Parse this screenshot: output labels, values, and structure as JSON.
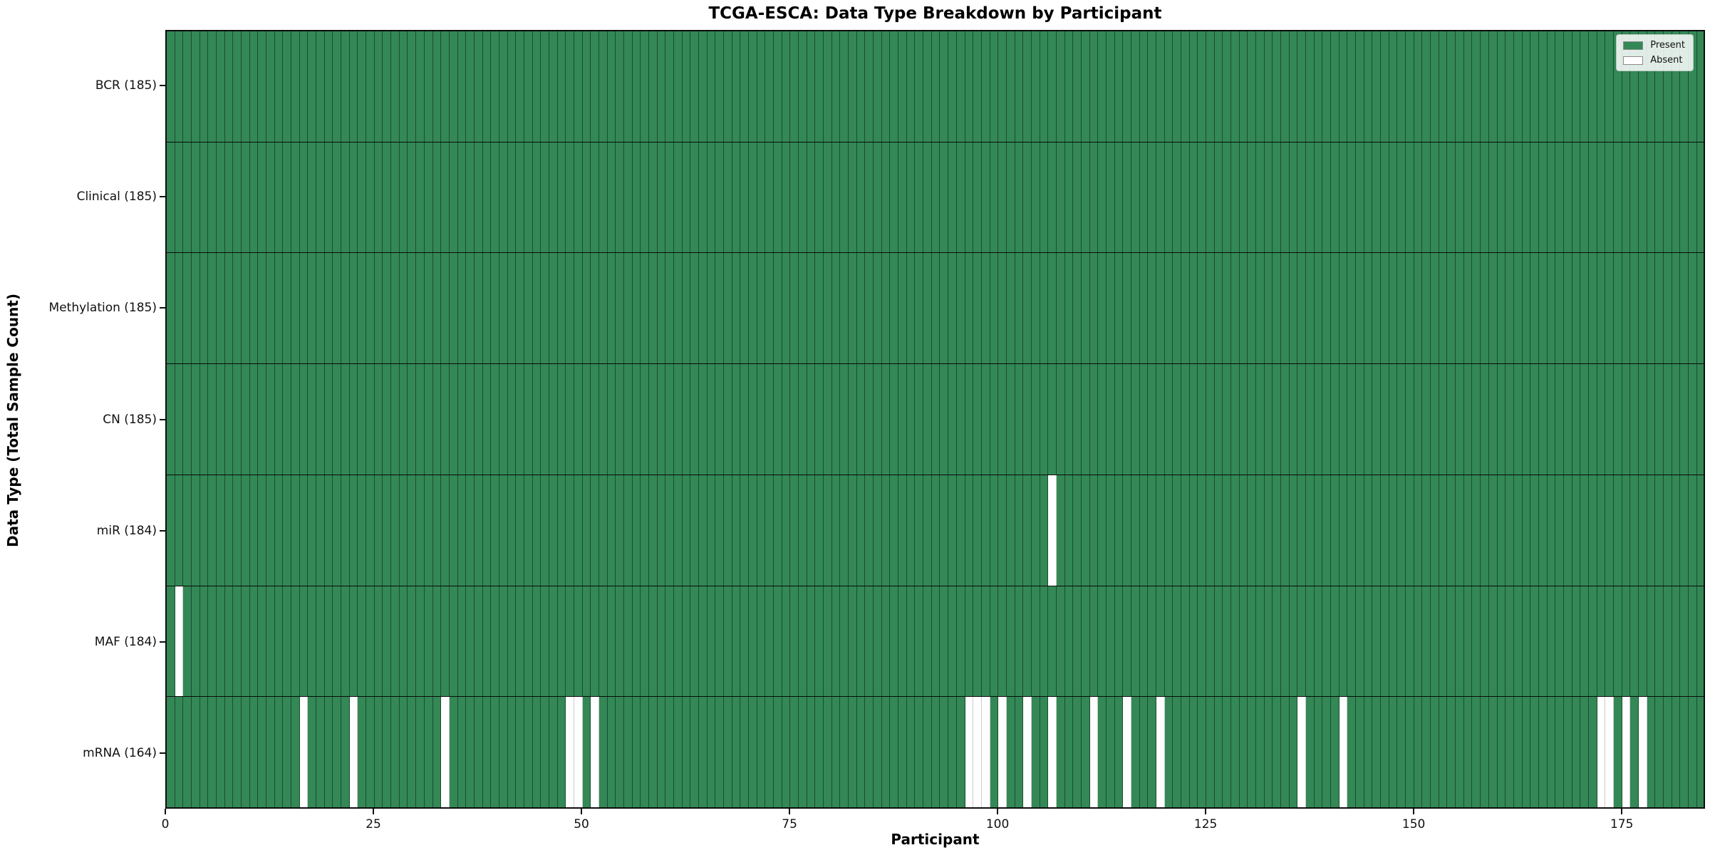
{
  "title": "TCGA-ESCA: Data Type Breakdown by Participant",
  "chart_data": {
    "type": "heatmap",
    "title": "TCGA-ESCA: Data Type Breakdown by Participant",
    "xlabel": "Participant",
    "ylabel": "Data Type (Total Sample Count)",
    "xlim": [
      0,
      185
    ],
    "x_ticks": [
      0,
      25,
      50,
      75,
      100,
      125,
      150,
      175
    ],
    "n_participants": 185,
    "grid": false,
    "legend_position": "upper right",
    "legend": {
      "entries": [
        {
          "label": "Present",
          "color": "#338856"
        },
        {
          "label": "Absent",
          "color": "#ffffff"
        }
      ]
    },
    "colors": {
      "present": "#338856",
      "present_edge": "#1b4d31",
      "absent": "#ffffff",
      "absent_edge": "#cccccc"
    },
    "rows": [
      {
        "name": "bcr",
        "label": "BCR (185)",
        "total": 185,
        "absent": []
      },
      {
        "name": "clinical",
        "label": "Clinical (185)",
        "total": 185,
        "absent": []
      },
      {
        "name": "methylation",
        "label": "Methylation (185)",
        "total": 185,
        "absent": []
      },
      {
        "name": "cn",
        "label": "CN (185)",
        "total": 185,
        "absent": []
      },
      {
        "name": "mir",
        "label": "miR (184)",
        "total": 184,
        "absent": [
          106
        ]
      },
      {
        "name": "maf",
        "label": "MAF (184)",
        "total": 184,
        "absent": [
          1
        ]
      },
      {
        "name": "mrna",
        "label": "mRNA (164)",
        "total": 164,
        "absent": [
          16,
          22,
          33,
          48,
          49,
          51,
          96,
          97,
          98,
          100,
          103,
          106,
          111,
          115,
          119,
          136,
          141,
          172,
          173,
          175,
          177
        ]
      }
    ]
  }
}
